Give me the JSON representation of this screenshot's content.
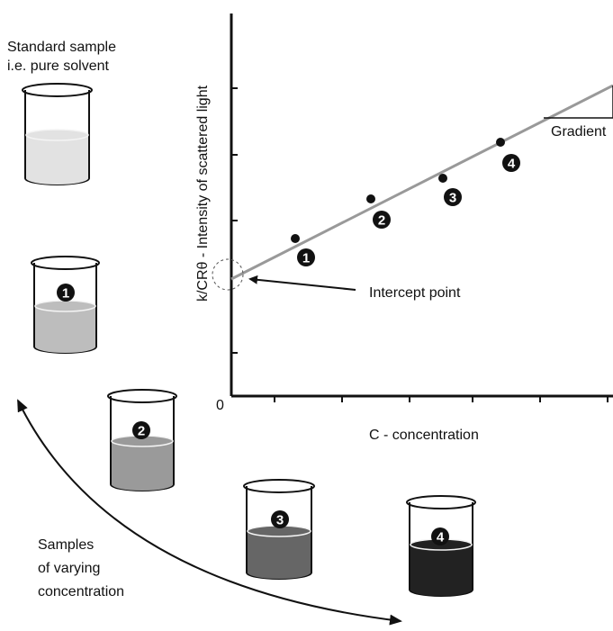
{
  "standard_sample": [
    "Standard sample",
    "i.e. pure solvent"
  ],
  "graph": {
    "y_axis_label": "k/CRθ  - Intensity of scattered light",
    "x_axis_label": "C - concentration",
    "origin_label": "0",
    "gradient_label": "Gradient",
    "intercept_label": "Intercept point",
    "points": [
      {
        "label": "1"
      },
      {
        "label": "2"
      },
      {
        "label": "3"
      },
      {
        "label": "4"
      }
    ]
  },
  "beakers": [
    {
      "label": "1"
    },
    {
      "label": "2"
    },
    {
      "label": "3"
    },
    {
      "label": "4"
    }
  ],
  "samples_caption": [
    "Samples",
    "of varying",
    "concentration"
  ]
}
